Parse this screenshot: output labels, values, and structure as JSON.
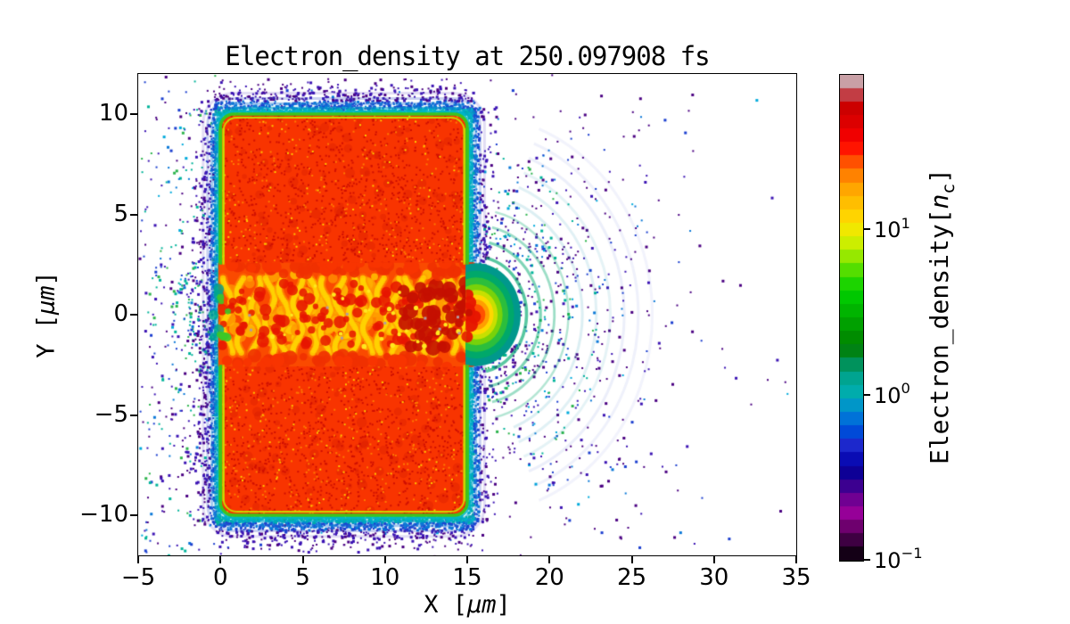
{
  "figure": {
    "background": "#ffffff"
  },
  "chart_data": {
    "type": "heatmap",
    "title": "Electron_density at 250.097908 fs",
    "time_fs": 250.097908,
    "xlabel": {
      "prefix": "X [",
      "unit": "μm",
      "suffix": "]"
    },
    "ylabel": {
      "prefix": "Y [",
      "unit": "μm",
      "suffix": "]"
    },
    "xlim": [
      -5,
      35
    ],
    "ylim": [
      -12,
      12
    ],
    "x_ticks": {
      "values": [
        -5,
        0,
        5,
        10,
        15,
        20,
        25,
        30,
        35
      ],
      "labels": [
        "−5",
        "0",
        "5",
        "10",
        "15",
        "20",
        "25",
        "30",
        "35"
      ]
    },
    "y_ticks": {
      "values": [
        10,
        5,
        0,
        -5,
        -10
      ],
      "labels": [
        "10",
        "5",
        "0",
        "−5",
        "−10"
      ]
    },
    "grid": false,
    "colorbar": {
      "label": {
        "prefix": "Electron_density[",
        "var": "n",
        "sub": "c",
        "suffix": "]"
      },
      "scale": "log",
      "range": [
        0.1,
        87
      ],
      "ticks": [
        {
          "value": 10,
          "base": "10",
          "exp": "1"
        },
        {
          "value": 1,
          "base": "10",
          "exp": "0"
        },
        {
          "value": 0.1,
          "base": "10",
          "exp": "−1"
        }
      ],
      "colormap": "nipy_spectral (discrete steps)",
      "colors_top_to_bottom": [
        "#c9a0a6",
        "#c23d44",
        "#cc0000",
        "#dc0000",
        "#f00000",
        "#ff1400",
        "#ff5000",
        "#ff8200",
        "#ffa600",
        "#ffbe00",
        "#ffd400",
        "#f0e800",
        "#ccee00",
        "#96e800",
        "#54de00",
        "#1cd400",
        "#00c800",
        "#00b400",
        "#00a000",
        "#008c00",
        "#008214",
        "#00925c",
        "#00a490",
        "#00acac",
        "#0096c8",
        "#0072d8",
        "#004ad8",
        "#1c28cc",
        "#0a0cb4",
        "#0e0096",
        "#3c0090",
        "#700092",
        "#960098",
        "#6e006e",
        "#3e0042",
        "#140016"
      ]
    },
    "features": {
      "target_slab": {
        "x_um": [
          0,
          15
        ],
        "y_um": [
          -10,
          10
        ],
        "corner_radius_um": 0.8,
        "description": "opaque overdense plasma slab, ~5–90 nc (solid red with dark-red/orange speckle)"
      },
      "laser_channel": {
        "x_um": [
          0,
          15.4
        ],
        "half_width_um": 2.4,
        "filament_period_um": 0.85,
        "description": "turbulent laser-drilled channel along y=0: wavy yellow/orange filaments with dark-red blobs and rare gray saturation specks"
      },
      "exit_plume": {
        "center_um": [
          15.5,
          0
        ],
        "radius_um": 2.6,
        "description": "blowout plume at channel exit: yellow core → green → teal shells, red fingers from channel"
      },
      "wakefield_rings": {
        "center_um": [
          15.45,
          0
        ],
        "first_radius_um": 2.3,
        "spacing_um": 0.85,
        "outer_radius_um": 11.6,
        "description": "concentric expanding density shells ~0.3–2 nc (green→teal→blue), fading with radius, spanning x≈15–27"
      },
      "left_arcs": {
        "center_um": [
          0,
          0
        ],
        "radii_um": [
          1.3,
          2.1,
          2.9,
          4.4,
          6.2,
          8.0,
          9.8,
          11.6
        ],
        "description": "faint backward-expanding shells of sparse electrons (blue/purple dots) on the front side"
      },
      "scattered_electrons": {
        "description": "~0.1–0.5 nc isolated macro-particle dots (purple/blue) filling vacuum, densest near target edges and shells, thinning to the right border"
      }
    },
    "palette": {
      "scatter": [
        "#4a0082",
        "#3c14b4",
        "#1b3fd0",
        "#0a78d8",
        "#00aadc",
        "#00b49a",
        "#2cb44c"
      ],
      "target_fill": "#f83400",
      "speckle_dark": "#d01000",
      "speckle_orange": "#ff7a00",
      "speckle_yellow": "#ffc800",
      "skin_green": "#3cc41e",
      "skin_yellow": "#c8e400",
      "halo_cyan": "#00b4c8",
      "channel_base": "#fa4a00",
      "channel_yellow": "#ffd400",
      "channel_orange": "#ff9600",
      "channel_red": "#e61400",
      "channel_dark_red": "#c41000",
      "channel_spark": "#ffe81e",
      "gray_speck": "#b49aa0",
      "plume_shells": [
        {
          "r_um": 2.7,
          "color": "#00988c"
        },
        {
          "r_um": 2.3,
          "color": "#00a86a"
        },
        {
          "r_um": 1.95,
          "color": "#2cbe3c"
        },
        {
          "r_um": 1.6,
          "color": "#78d20a"
        },
        {
          "r_um": 1.3,
          "color": "#c8e000"
        },
        {
          "r_um": 1.05,
          "color": "#ffd800"
        },
        {
          "r_um": 0.8,
          "color": "#ff9e00"
        },
        {
          "r_um": 0.55,
          "color": "#ff5000"
        }
      ]
    }
  }
}
